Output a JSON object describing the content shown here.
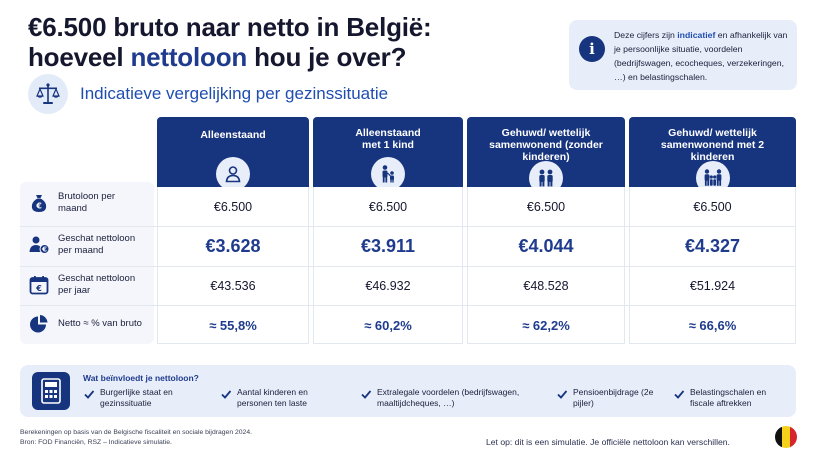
{
  "title": {
    "line1": "€6.500 bruto naar netto in België:",
    "line2_prefix": "hoeveel ",
    "line2_highlight": "nettoloon",
    "line2_suffix": " hou je over?"
  },
  "subtitle": "Indicatieve vergelijking per gezinssituatie",
  "info": {
    "icon": "info-icon",
    "text_before": "Deze cijfers zijn ",
    "text_emph": "indicatief",
    "text_after": " en afhankelijk van je persoonlijke situatie, voordelen (bedrijfswagen, ecocheques, verzekeringen, …) en belastingschalen."
  },
  "columns": [
    {
      "header": "Alleenstaand",
      "icon": "person-icon"
    },
    {
      "header": "Alleenstaand met 1 kind",
      "icon": "adult-with-child-icon"
    },
    {
      "header": "Gehuwd/ wettelijk samenwonend (zonder kinderen)",
      "icon": "couple-icon"
    },
    {
      "header": "Gehuwd/ wettelijk samenwonend met 2 kinderen",
      "icon": "family-icon"
    }
  ],
  "rows": [
    {
      "label": "Brutoloon per maand",
      "icon": "money-bag-icon",
      "values": [
        "€6.500",
        "€6.500",
        "€6.500",
        "€6.500"
      ]
    },
    {
      "label": "Geschat nettoloon per maand",
      "icon": "person-euro-icon",
      "values": [
        "€3.628",
        "€3.911",
        "€4.044",
        "€4.327"
      ]
    },
    {
      "label": "Geschat nettoloon per jaar",
      "icon": "calendar-euro-icon",
      "values": [
        "€43.536",
        "€46.932",
        "€48.528",
        "€51.924"
      ]
    },
    {
      "label": "Netto ≈ % van bruto",
      "icon": "pie-chart-icon",
      "values": [
        "≈ 55,8%",
        "≈ 60,2%",
        "≈ 62,2%",
        "≈ 66,6%"
      ]
    }
  ],
  "influence": {
    "title": "Wat beïnvloedt je nettoloon?",
    "icon": "calculator-icon",
    "items": [
      "Burgerlijke staat en gezinssituatie",
      "Aantal kinderen en personen ten laste",
      "Extralegale voordelen (bedrijfswagen, maaltijdcheques, …)",
      "Pensioenbijdrage (2e pijler)",
      "Belastingschalen en fiscale aftrekken"
    ]
  },
  "footnote": {
    "line1": "Berekeningen op basis van de Belgische fiscaliteit en sociale bijdragen 2024.",
    "line2": "Bron: FOD Financiën, RSZ – Indicatieve simulatie."
  },
  "disclaimer": "Let op: dit is een simulatie. Je officiële nettoloon kan verschillen.",
  "colors": {
    "navy": "#17347f",
    "accent_blue": "#1f4db0",
    "panel_bg": "#e7eef9",
    "flag": [
      "#111111",
      "#f5d11a",
      "#d6262b"
    ]
  }
}
